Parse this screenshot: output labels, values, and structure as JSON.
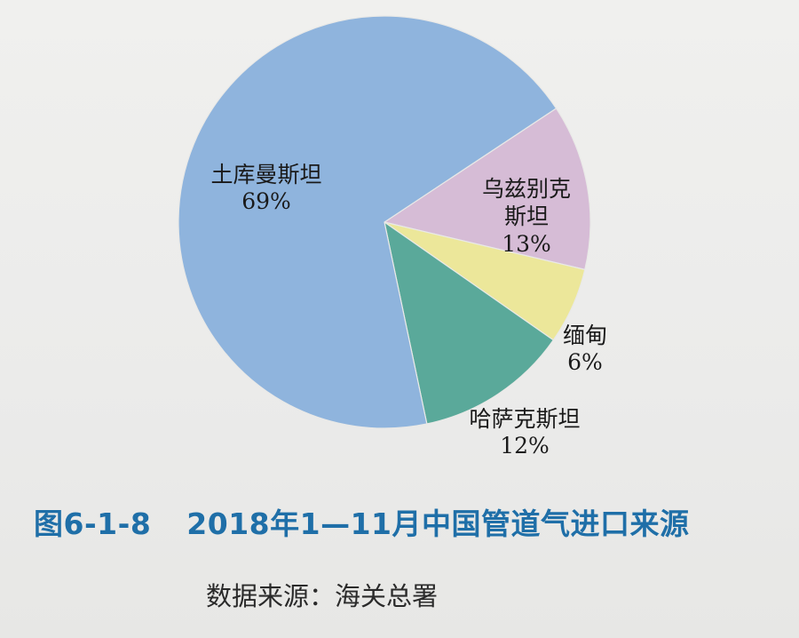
{
  "chart_data": {
    "type": "pie",
    "slices": [
      {
        "name": "土库曼斯坦",
        "label_lines": [
          "土库曼斯坦"
        ],
        "value": 69,
        "value_label": "69%",
        "color": "#8fb4dd"
      },
      {
        "name": "乌兹别克斯坦",
        "label_lines": [
          "乌兹别克",
          "斯坦"
        ],
        "value": 13,
        "value_label": "13%",
        "color": "#d6bcd6"
      },
      {
        "name": "缅甸",
        "label_lines": [
          "缅甸"
        ],
        "value": 6,
        "value_label": "6%",
        "color": "#ece79a"
      },
      {
        "name": "哈萨克斯坦",
        "label_lines": [
          "哈萨克斯坦"
        ],
        "value": 12,
        "value_label": "12%",
        "color": "#5aa99a"
      }
    ]
  },
  "caption": {
    "figure_number": "图6-1-8",
    "title": "2018年1—11月中国管道气进口来源"
  },
  "source": "数据来源：海关总署"
}
